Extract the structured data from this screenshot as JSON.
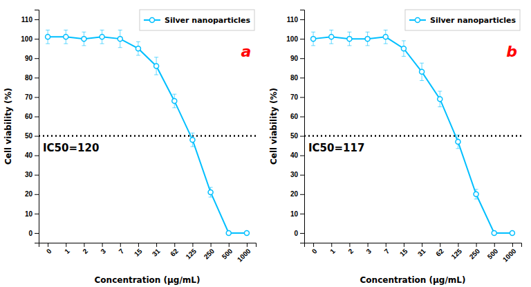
{
  "chart_data": [
    {
      "type": "line",
      "categories": [
        "0",
        "1",
        "2",
        "3",
        "7",
        "15",
        "31",
        "62",
        "125",
        "250",
        "500",
        "1000"
      ],
      "series": [
        {
          "name": "Silver nanoparticles",
          "color": "#00BFFF",
          "marker": "circle",
          "values": [
            101,
            101,
            100,
            101,
            100,
            95,
            86,
            68,
            48,
            21,
            0,
            0
          ],
          "errors": [
            3.5,
            3.5,
            3.5,
            3.5,
            4.5,
            3.5,
            4.5,
            3.5,
            3.5,
            2.5,
            0.5,
            0.5
          ]
        }
      ],
      "reference_line": 50,
      "annotations": [
        {
          "text": "IC50=120"
        },
        {
          "text": "a",
          "color": "red"
        }
      ],
      "xlabel": "Concentration (μg/mL)",
      "ylabel": "Cell viability (%)",
      "ylim": [
        -5,
        115
      ],
      "yticks": [
        0,
        10,
        20,
        30,
        40,
        50,
        60,
        70,
        80,
        90,
        100,
        110
      ],
      "grid": false,
      "legend": "upper right"
    },
    {
      "type": "line",
      "categories": [
        "0",
        "1",
        "2",
        "3",
        "7",
        "15",
        "31",
        "62",
        "125",
        "250",
        "500",
        "1000"
      ],
      "series": [
        {
          "name": "Silver nanoparticles",
          "color": "#00BFFF",
          "marker": "circle",
          "values": [
            100,
            101,
            100,
            100,
            101,
            95,
            83,
            69,
            47,
            20,
            0,
            0
          ],
          "errors": [
            3.5,
            3.5,
            3.5,
            3.5,
            3.5,
            4.0,
            4.5,
            4.0,
            3.5,
            2.5,
            0.5,
            0.5
          ]
        }
      ],
      "reference_line": 50,
      "annotations": [
        {
          "text": "IC50=117"
        },
        {
          "text": "b",
          "color": "red"
        }
      ],
      "xlabel": "Concentration (μg/mL)",
      "ylabel": "Cell viability (%)",
      "ylim": [
        -5,
        115
      ],
      "yticks": [
        0,
        10,
        20,
        30,
        40,
        50,
        60,
        70,
        80,
        90,
        100,
        110
      ],
      "grid": false,
      "legend": "upper right"
    }
  ]
}
